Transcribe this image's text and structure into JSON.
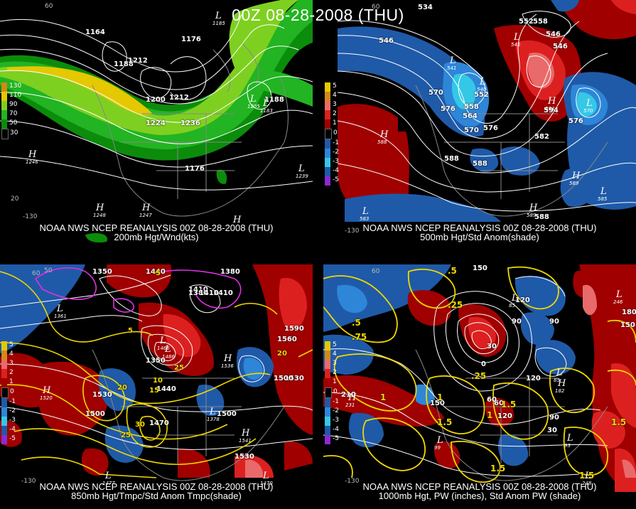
{
  "title": "00Z 08-28-2008 (THU)",
  "colors": {
    "green_dark": "#0b8c0b",
    "green": "#22b422",
    "green_light": "#7ed020",
    "yellow": "#e4c800",
    "orange": "#d08a18",
    "red": "#a00000",
    "red_bright": "#dc2020",
    "pink": "#e86a6a",
    "blue": "#1f5aa8",
    "blue_light": "#2e86d8",
    "cyan": "#34c8e6",
    "purple": "#8a2ad0",
    "contour": "#ffffff",
    "yellow_contour": "#f0d800",
    "magenta": "#e030e0"
  },
  "panels": [
    {
      "id": "200mb",
      "line1": "NOAA NWS NCEP REANALYSIS 00Z 08-28-2008 (THU)",
      "line2": "200mb Hgt/Wnd(kts)",
      "legend": [
        {
          "label": "130",
          "color": "#d08a18"
        },
        {
          "label": "110",
          "color": "#e4c800"
        },
        {
          "label": "90",
          "color": "#7ed020"
        },
        {
          "label": "70",
          "color": "#22b422"
        },
        {
          "label": "50",
          "color": "#0b8c0b"
        },
        {
          "label": "30",
          "color": "#000000"
        }
      ],
      "height_labels": [
        "1164",
        "1176",
        "1188",
        "1200",
        "1212",
        "1224",
        "1236",
        "1176",
        "1212",
        "1188"
      ],
      "pressure_labels": [
        {
          "letter": "L",
          "value": "1185"
        },
        {
          "letter": "L",
          "value": "1205"
        },
        {
          "letter": "H",
          "value": "1246"
        },
        {
          "letter": "L",
          "value": "1239"
        },
        {
          "letter": "H",
          "value": "1248"
        },
        {
          "letter": "H",
          "value": "1247"
        },
        {
          "letter": "H",
          "value": ""
        },
        {
          "letter": "L",
          "value": "1183"
        }
      ],
      "lat_labels": [
        "60",
        "20",
        "-130"
      ]
    },
    {
      "id": "500mb",
      "line1": "NOAA NWS NCEP REANALYSIS 00Z 08-28-2008 (THU)",
      "line2": "500mb Hgt/Std Anom(shade)",
      "legend": [
        {
          "label": "5",
          "color": "#e4c800"
        },
        {
          "label": "4",
          "color": "#d08a18"
        },
        {
          "label": "3",
          "color": "#e86a6a"
        },
        {
          "label": "2",
          "color": "#dc2020"
        },
        {
          "label": "1",
          "color": "#a00000"
        },
        {
          "label": "0",
          "color": "#000000"
        },
        {
          "label": "-1",
          "color": "#1f5aa8"
        },
        {
          "label": "-2",
          "color": "#2e86d8"
        },
        {
          "label": "-3",
          "color": "#34c8e6"
        },
        {
          "label": "-4",
          "color": "#1f5aa8"
        },
        {
          "label": "-5",
          "color": "#8a2ad0"
        }
      ],
      "height_labels": [
        "546",
        "552",
        "558",
        "564",
        "570",
        "576",
        "582",
        "588",
        "588",
        "534",
        "546",
        "546",
        "552",
        "558",
        "570",
        "576",
        "594",
        "588",
        "576"
      ],
      "pressure_labels": [
        {
          "letter": "L",
          "value": "541"
        },
        {
          "letter": "L",
          "value": "540"
        },
        {
          "letter": "H",
          "value": "594"
        },
        {
          "letter": "H",
          "value": "588"
        },
        {
          "letter": "L",
          "value": "570"
        },
        {
          "letter": "H",
          "value": "589"
        },
        {
          "letter": "H",
          "value": "589"
        },
        {
          "letter": "L",
          "value": "585"
        },
        {
          "letter": "L",
          "value": "583"
        },
        {
          "letter": "L",
          "value": "545"
        }
      ],
      "lat_labels": [
        "60",
        "-130"
      ]
    },
    {
      "id": "850mb",
      "line1": "NOAA NWS NCEP REANALYSIS 00Z 08-28-2008 (THU)",
      "line2": "850mb Hgt/Tmpc/Std Anom Tmpc(shade)",
      "legend": [
        {
          "label": "5",
          "color": "#e4c800"
        },
        {
          "label": "4",
          "color": "#d08a18"
        },
        {
          "label": "3",
          "color": "#e86a6a"
        },
        {
          "label": "2",
          "color": "#dc2020"
        },
        {
          "label": "1",
          "color": "#a00000"
        },
        {
          "label": "0",
          "color": "#000000"
        },
        {
          "label": "-1",
          "color": "#1f5aa8"
        },
        {
          "label": "-2",
          "color": "#2e86d8"
        },
        {
          "label": "-3",
          "color": "#34c8e6"
        },
        {
          "label": "-4",
          "color": "#1f5aa8"
        },
        {
          "label": "-5",
          "color": "#8a2ad0"
        }
      ],
      "height_labels": [
        "1350",
        "1440",
        "1380",
        "1410",
        "1410",
        "1350",
        "1440",
        "1530",
        "1500",
        "1470",
        "1530",
        "1560",
        "1590",
        "1500",
        "1530",
        "1500",
        "1380",
        "1410"
      ],
      "temp_labels": [
        "-5",
        "5",
        "10",
        "15",
        "20",
        "25",
        "30",
        "25",
        "20"
      ],
      "pressure_labels": [
        {
          "letter": "L",
          "value": "1361"
        },
        {
          "letter": "H",
          "value": "1520"
        },
        {
          "letter": "L",
          "value": "1378"
        },
        {
          "letter": "H",
          "value": "1536"
        },
        {
          "letter": "H",
          "value": "1541"
        },
        {
          "letter": "L",
          "value": "1477"
        },
        {
          "letter": "L",
          "value": "1466"
        },
        {
          "letter": "L",
          "value": "1486"
        },
        {
          "letter": "L",
          "value": "1470"
        }
      ],
      "lat_labels": [
        "50",
        "-130",
        "60"
      ]
    },
    {
      "id": "1000mb",
      "line1": "NOAA NWS NCEP REANALYSIS 00Z 08-28-2008 (THU)",
      "line2": "1000mb Hgt, PW (inches), Std Anom PW (shade)",
      "legend": [
        {
          "label": "5",
          "color": "#e4c800"
        },
        {
          "label": "4",
          "color": "#d08a18"
        },
        {
          "label": "3",
          "color": "#e86a6a"
        },
        {
          "label": "2",
          "color": "#dc2020"
        },
        {
          "label": "1",
          "color": "#a00000"
        },
        {
          "label": "0",
          "color": "#000000"
        },
        {
          "label": "-1",
          "color": "#1f5aa8"
        },
        {
          "label": "-2",
          "color": "#2e86d8"
        },
        {
          "label": "-3",
          "color": "#34c8e6"
        },
        {
          "label": "-4",
          "color": "#1f5aa8"
        },
        {
          "label": "-5",
          "color": "#8a2ad0"
        }
      ],
      "height_labels": [
        "150",
        "120",
        "90",
        "60",
        "210",
        "180",
        "150",
        "120",
        "90",
        "30",
        "0",
        "60",
        "90",
        "30",
        "150",
        "120"
      ],
      "pw_labels": [
        ".5",
        ".25",
        ".5",
        "1",
        "1.5",
        "1.5",
        "1",
        "1.5",
        "1.5",
        ".75",
        "1",
        ".25",
        "1.5"
      ],
      "pressure_labels": [
        {
          "letter": "L",
          "value": "85"
        },
        {
          "letter": "H",
          "value": "231"
        },
        {
          "letter": "H",
          "value": "182"
        },
        {
          "letter": "L",
          "value": "85"
        },
        {
          "letter": "L",
          "value": "93"
        },
        {
          "letter": "L",
          "value": "99"
        },
        {
          "letter": "L",
          "value": "246"
        },
        {
          "letter": "L",
          "value": "248"
        }
      ],
      "lat_labels": [
        "60",
        "-130"
      ]
    }
  ]
}
